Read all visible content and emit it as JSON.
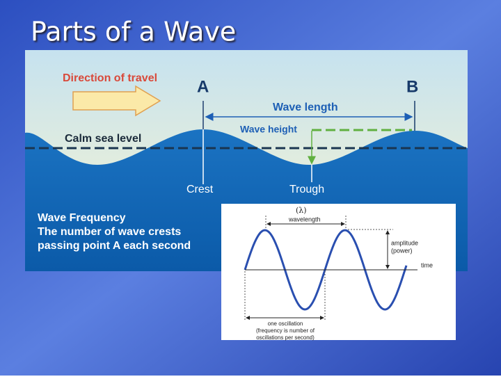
{
  "header": {
    "title": "Parts of a Wave"
  },
  "wave_diagram": {
    "direction_label": "Direction of travel",
    "point_a": "A",
    "point_b": "B",
    "wavelength_label": "Wave length",
    "wave_height_label": "Wave height",
    "calm_sea_label": "Calm sea level",
    "crest_label": "Crest",
    "trough_label": "Trough",
    "frequency_title": "Wave Frequency",
    "frequency_lines": [
      "The number of wave crests",
      "passing point A each second"
    ]
  },
  "sine_diagram": {
    "lambda_label": "(λ)",
    "wavelength_label": "wavelength",
    "amplitude_lines": [
      "amplitude",
      "(power)"
    ],
    "time_label": "time",
    "oscillation_lines": [
      "one oscillation",
      "(frequency is number of",
      "oscillations per second)"
    ]
  }
}
